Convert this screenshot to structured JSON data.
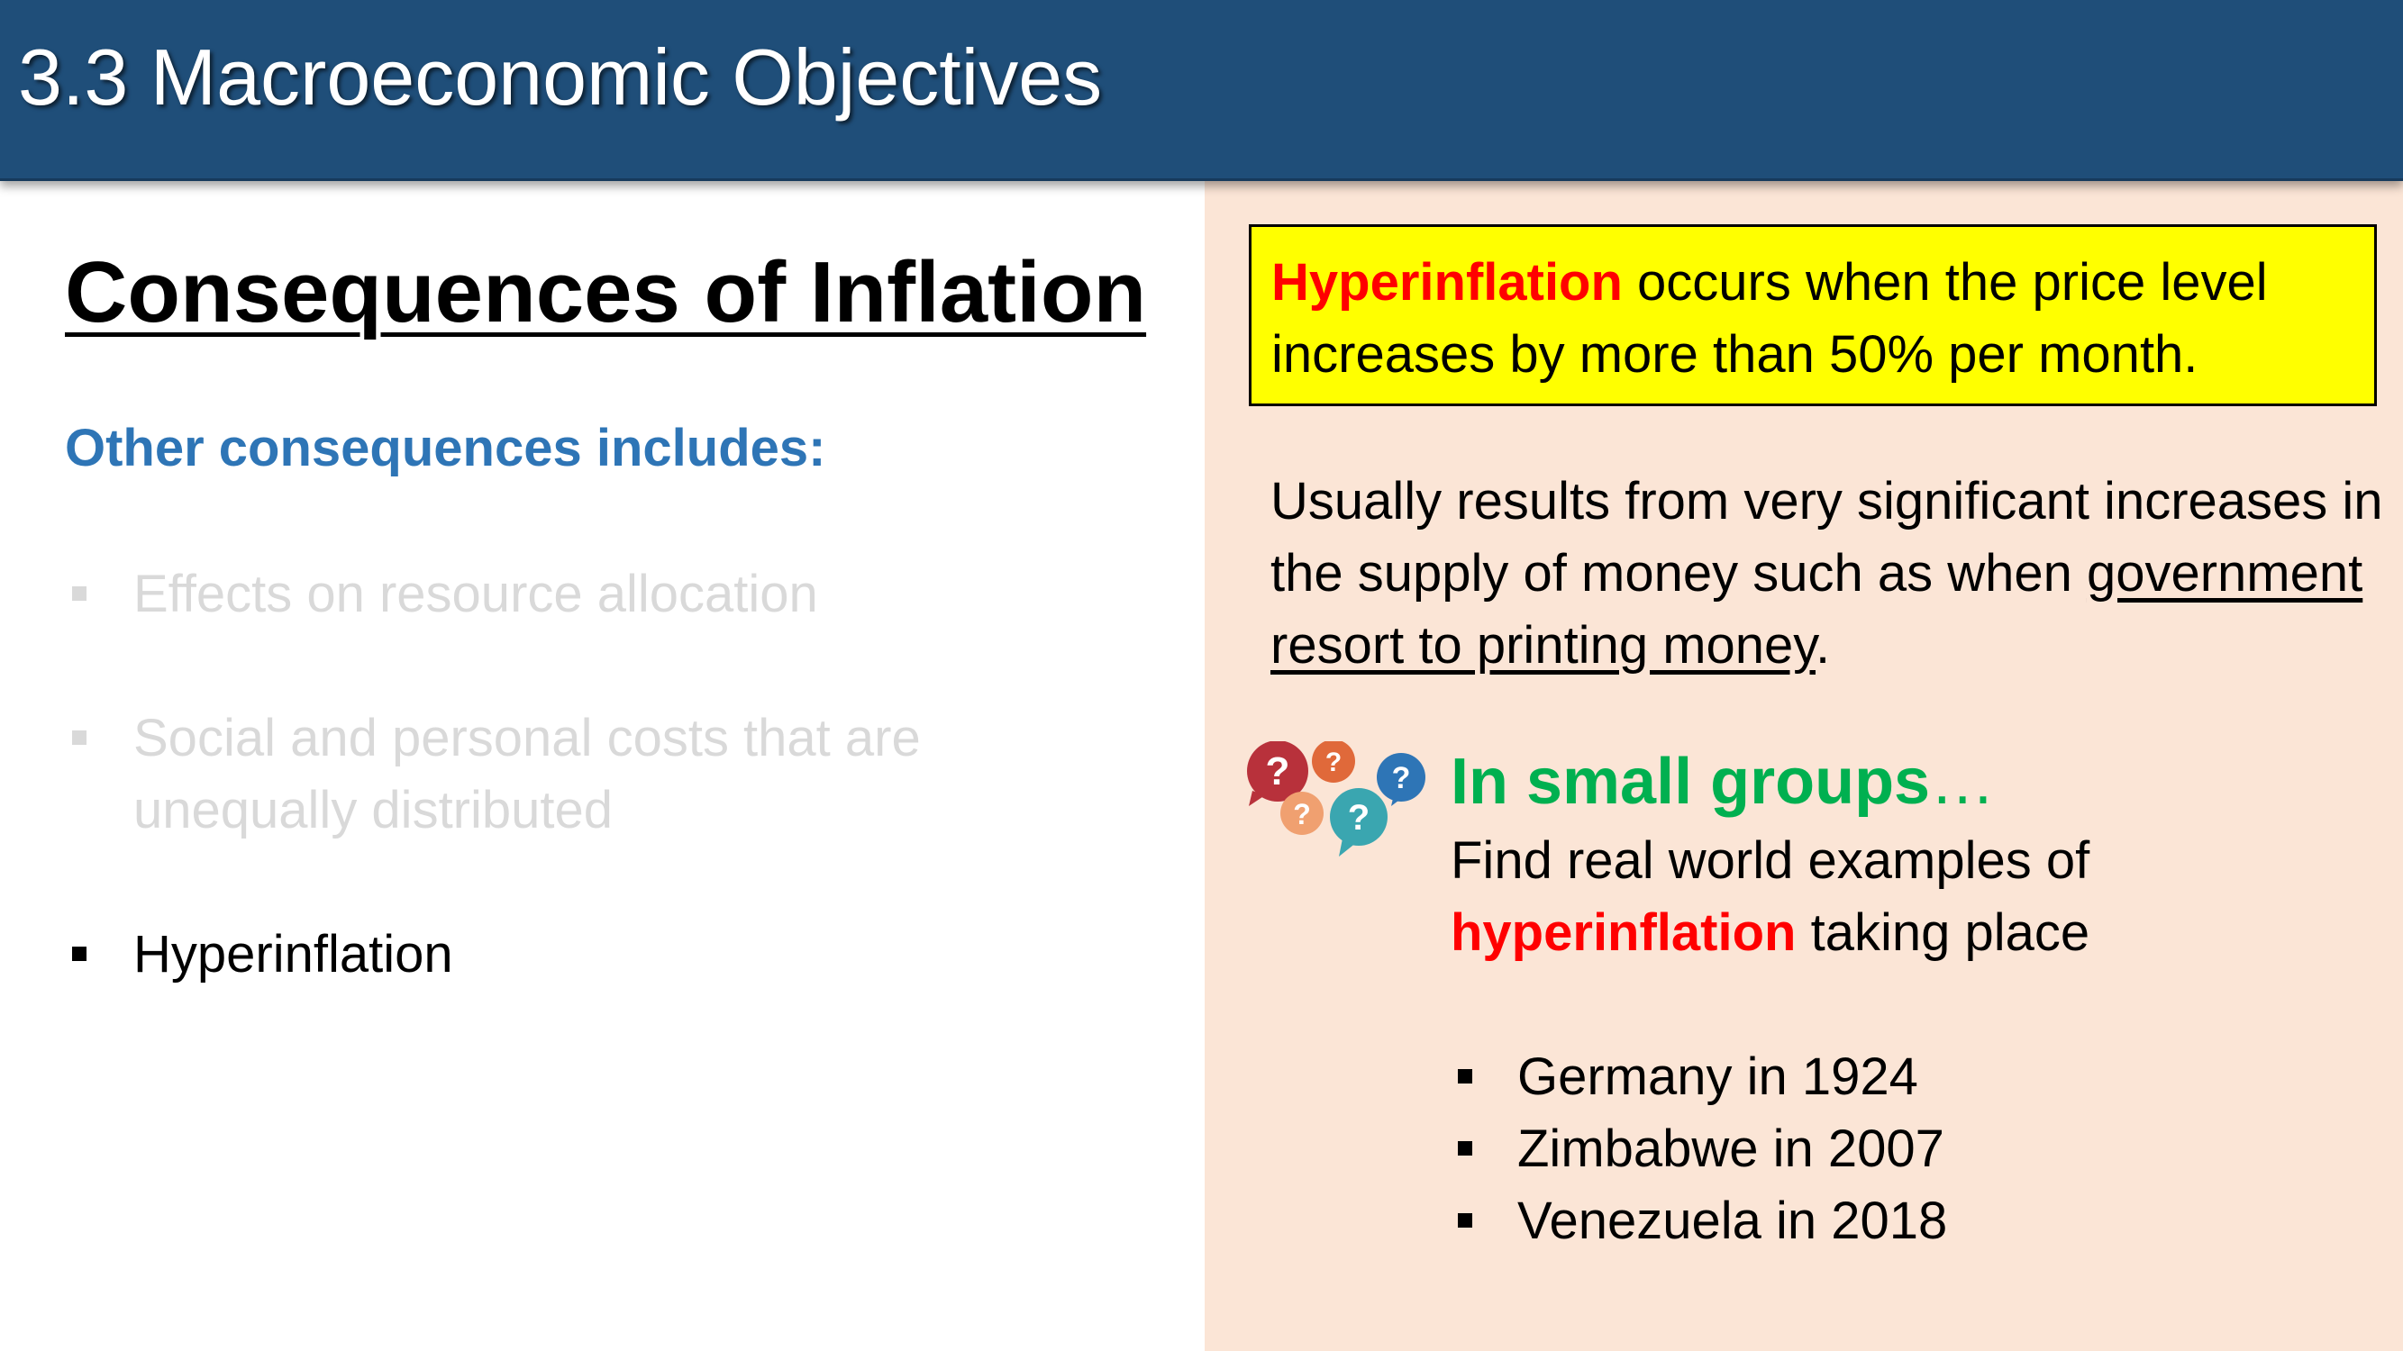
{
  "header": {
    "title": "3.3 Macroeconomic Objectives",
    "background": "#1f4e79"
  },
  "left": {
    "title": "Consequences of Inflation",
    "subheading": "Other consequences includes:",
    "bullets": [
      {
        "text": "Effects on resource allocation",
        "state": "dimmed"
      },
      {
        "text": "Social and personal costs that are unequally distributed",
        "state": "dimmed"
      },
      {
        "text": "Hyperinflation",
        "state": "active"
      }
    ]
  },
  "right": {
    "definition": {
      "term": "Hyperinflation",
      "rest": " occurs when the price level increases by more than 50% per month."
    },
    "explanation": {
      "prefix": "Usually results from very significant increases in the supply of money such as when ",
      "underlined": "government resort to printing money",
      "suffix": "."
    },
    "activity": {
      "icon": "question-speech-bubbles-icon",
      "title": "In small groups",
      "ellipsis": "…",
      "task_prefix": "Find real world examples of ",
      "task_highlight": "hyperinflation",
      "task_suffix": " taking place"
    },
    "examples": [
      "Germany in 1924",
      "Zimbabwe in 2007",
      "Venezuela in 2018"
    ]
  },
  "colors": {
    "accent_blue": "#2e75b6",
    "highlight_yellow": "#ffff00",
    "panel_peach": "#fbe5d6",
    "alert_red": "#ff0000",
    "green": "#00b050"
  }
}
